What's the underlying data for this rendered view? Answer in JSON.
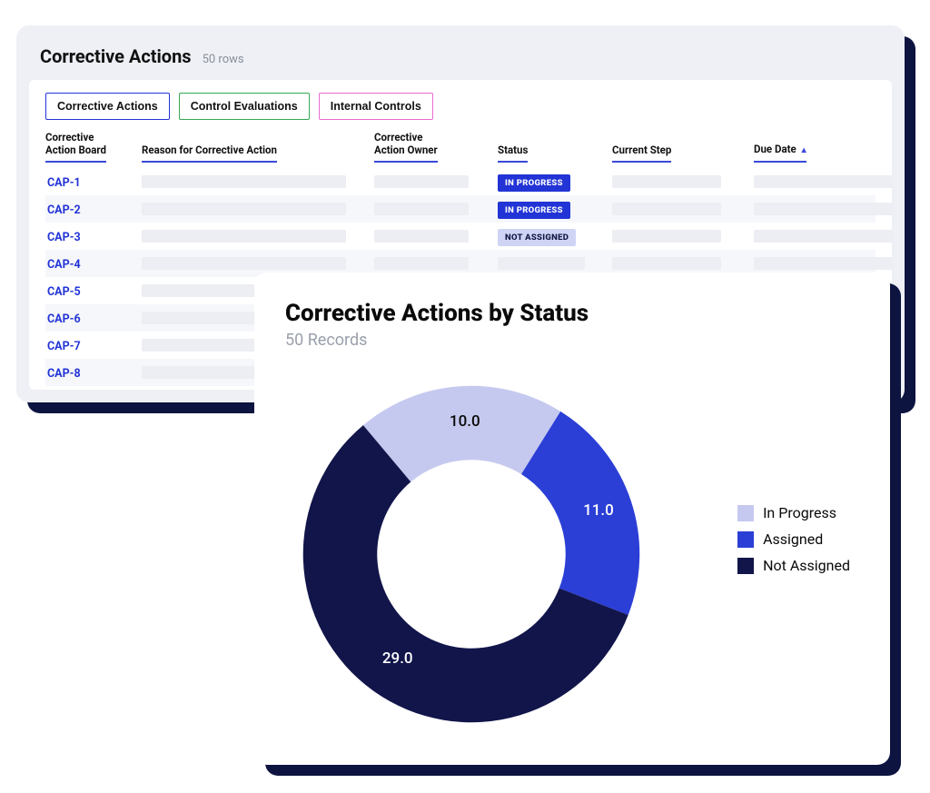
{
  "table": {
    "title": "Corrective Actions",
    "row_count_label": "50 rows",
    "tabs": [
      {
        "label": "Corrective Actions",
        "border_color": "#2234d6"
      },
      {
        "label": "Control Evaluations",
        "border_color": "#34a853"
      },
      {
        "label": "Internal Controls",
        "border_color": "#e86bd0"
      }
    ],
    "columns": [
      "Corrective\nAction Board",
      "Reason for Corrective Action",
      "Corrective\nAction Owner",
      "Status",
      "Current Step",
      "Due Date"
    ],
    "sort_column_index": 5,
    "status_styles": {
      "IN PROGRESS": {
        "bg": "#2234d6",
        "fg": "#ffffff"
      },
      "NOT ASSIGNED": {
        "bg": "#cfd4f5",
        "fg": "#0d1440"
      }
    },
    "rows": [
      {
        "id": "CAP-1",
        "status": "IN PROGRESS"
      },
      {
        "id": "CAP-2",
        "status": "IN PROGRESS"
      },
      {
        "id": "CAP-3",
        "status": "NOT ASSIGNED"
      },
      {
        "id": "CAP-4",
        "status": null
      },
      {
        "id": "CAP-5",
        "status": null
      },
      {
        "id": "CAP-6",
        "status": null
      },
      {
        "id": "CAP-7",
        "status": null
      },
      {
        "id": "CAP-8",
        "status": null
      }
    ],
    "placeholder_color": "#eceef3"
  },
  "chart": {
    "type": "donut",
    "title": "Corrective Actions by Status",
    "subtitle": "50 Records",
    "total": 50,
    "inner_radius_ratio": 0.56,
    "start_angle_deg": -130,
    "background_color": "#ffffff",
    "label_fontsize": 17,
    "title_fontsize": 26,
    "subtitle_fontsize": 18,
    "subtitle_color": "#9aa0ab",
    "slices": [
      {
        "label": "In Progress",
        "value": 10.0,
        "color": "#c6c9ef",
        "value_text": "10.0"
      },
      {
        "label": "Assigned",
        "value": 11.0,
        "color": "#2b3fd6",
        "value_text": "11.0"
      },
      {
        "label": "Not Assigned",
        "value": 29.0,
        "color": "#12154a",
        "value_text": "29.0"
      }
    ],
    "legend": [
      {
        "label": "In Progress",
        "color": "#c6c9ef"
      },
      {
        "label": "Assigned",
        "color": "#2b3fd6"
      },
      {
        "label": "Not Assigned",
        "color": "#12154a"
      }
    ]
  },
  "shadow_color": "#0d1440"
}
